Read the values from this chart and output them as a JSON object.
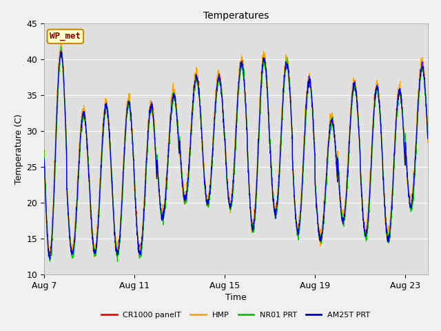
{
  "title": "Temperatures",
  "xlabel": "Time",
  "ylabel": "Temperature (C)",
  "ylim": [
    10,
    45
  ],
  "xlim_days": [
    0,
    17
  ],
  "tick_labels": [
    "Aug 7",
    "Aug 11",
    "Aug 15",
    "Aug 19",
    "Aug 23"
  ],
  "tick_positions": [
    0,
    4,
    8,
    12,
    16
  ],
  "legend_labels": [
    "CR1000 panelT",
    "HMP",
    "NR01 PRT",
    "AM25T PRT"
  ],
  "line_colors": [
    "#ff0000",
    "#ffa500",
    "#00cc00",
    "#0000dd"
  ],
  "annotation_text": "WP_met",
  "annotation_bg": "#ffffcc",
  "annotation_border": "#cc8800",
  "annotation_text_color": "#880000",
  "fig_facecolor": "#f0f0f0",
  "ax_facecolor": "#e0e0e0",
  "grid_color": "#ffffff",
  "day_peaks": [
    41.0,
    32.5,
    33.5,
    34.0,
    33.5,
    35.0,
    37.5,
    37.5,
    39.5,
    40.0,
    39.5,
    37.0,
    31.5,
    36.5,
    36.0,
    35.5,
    39.0
  ],
  "day_troughs": [
    12.5,
    13.0,
    13.0,
    13.0,
    13.0,
    18.0,
    20.5,
    20.0,
    19.5,
    16.5,
    18.5,
    16.0,
    15.0,
    17.5,
    15.5,
    15.0,
    19.5
  ]
}
